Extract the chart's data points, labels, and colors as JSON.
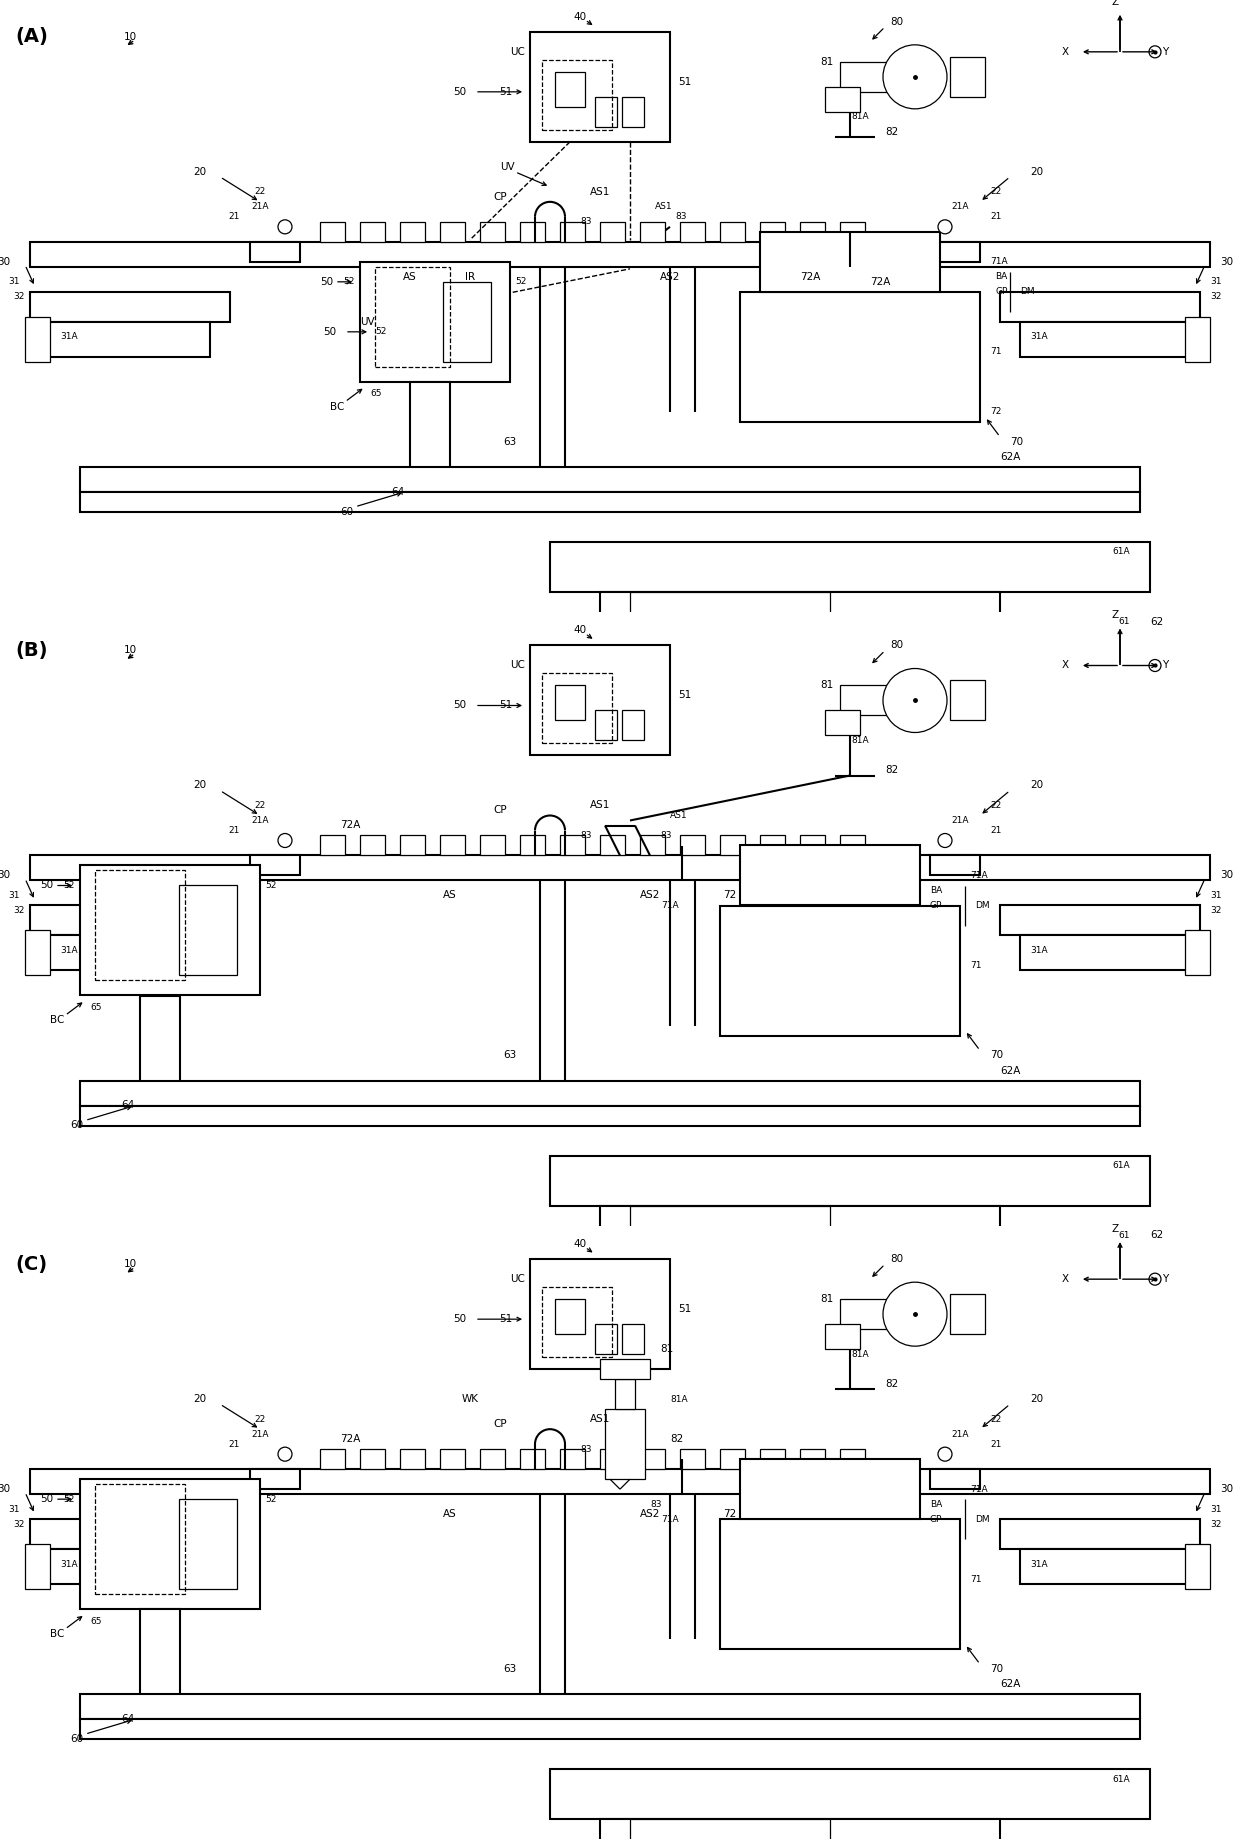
{
  "figsize": [
    12.4,
    18.41
  ],
  "dpi": 100,
  "panels": [
    "A",
    "B",
    "C"
  ],
  "lw": 1.5,
  "lw2": 0.9,
  "fs": 7.5,
  "fs_panel": 14,
  "fs_small": 6.5
}
